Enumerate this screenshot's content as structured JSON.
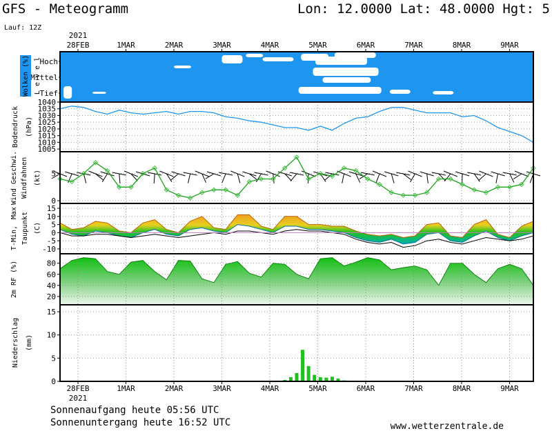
{
  "header": {
    "title": "GFS - Meteogramm",
    "location": "Lon: 12.0000 Lat: 48.0000 Hgt: 5",
    "run": "Lauf: 12Z"
  },
  "x_axis": {
    "year": "2021",
    "dates": [
      "28FEB",
      "1MAR",
      "2MAR",
      "3MAR",
      "4MAR",
      "5MAR",
      "6MAR",
      "7MAR",
      "8MAR",
      "9MAR"
    ]
  },
  "footer": {
    "sunrise": "Sonnenaufgang heute 05:56 UTC",
    "sunset": "Sonnenuntergang heute 16:52 UTC",
    "site": "www.wetterzentrale.de"
  },
  "colors": {
    "cloud_bg": "#1e96f0",
    "cloud": "#ffffff",
    "pressure_line": "#1e96f0",
    "wind_line": "#1aa01a",
    "wind_marker": "#40c040",
    "tmax_fill": "#f0a020",
    "tmin_fill": "#00c0c0",
    "temp_fill": "#20c020",
    "dew_line": "#000000",
    "rh_fill": "#20c020",
    "precip_bar": "#20c020"
  },
  "chart_data": [
    {
      "type": "area",
      "panel": "clouds",
      "ylabel": [
        "Wolken (%)",
        "L e v e l"
      ],
      "levels": [
        "Hoch",
        "Mittel",
        "Tief"
      ]
    },
    {
      "type": "line",
      "panel": "pressure",
      "ylabel": [
        "Bodendruck",
        "(hPa)"
      ],
      "yticks": [
        1005,
        1010,
        1015,
        1020,
        1025,
        1030,
        1035,
        1040
      ],
      "ylim": [
        1003,
        1040
      ],
      "x_days": [
        0,
        0.25,
        0.5,
        0.75,
        1,
        1.25,
        1.5,
        1.75,
        2,
        2.25,
        2.5,
        2.75,
        3,
        3.25,
        3.5,
        3.75,
        4,
        4.25,
        4.5,
        4.75,
        5,
        5.25,
        5.5,
        5.75,
        6,
        6.25,
        6.5,
        6.75,
        7,
        7.25,
        7.5,
        7.75,
        8,
        8.25,
        8.5,
        8.75,
        9,
        9.25,
        9.5,
        9.75,
        10
      ],
      "values": [
        1035,
        1037,
        1036,
        1033,
        1031,
        1034,
        1032,
        1031,
        1032,
        1033,
        1031,
        1033,
        1033,
        1032,
        1029,
        1028,
        1026,
        1025,
        1023,
        1021,
        1021,
        1019,
        1022,
        1019,
        1024,
        1028,
        1029,
        1033,
        1036,
        1036,
        1034,
        1032,
        1032,
        1032,
        1029,
        1030,
        1026,
        1021,
        1018,
        1015,
        1010
      ]
    },
    {
      "type": "line",
      "panel": "wind",
      "ylabel": [
        "Wind Geschwi.",
        "Windfahnen",
        "(kt)"
      ],
      "yticks": [
        0,
        5
      ],
      "ylim": [
        -0.5,
        9
      ],
      "x_days": [
        0,
        0.25,
        0.5,
        0.75,
        1,
        1.25,
        1.5,
        1.75,
        2,
        2.25,
        2.5,
        2.75,
        3,
        3.25,
        3.5,
        3.75,
        4,
        4.25,
        4.5,
        4.75,
        5,
        5.25,
        5.5,
        5.75,
        6,
        6.25,
        6.5,
        6.75,
        7,
        7.25,
        7.5,
        7.75,
        8,
        8.25,
        8.5,
        8.75,
        9,
        9.25,
        9.5,
        9.75,
        10
      ],
      "values": [
        4,
        3.5,
        5,
        7,
        5.5,
        2.5,
        2.5,
        5,
        6,
        2,
        1,
        0.5,
        1.5,
        2,
        2,
        1,
        3.5,
        4,
        4,
        6,
        8,
        4,
        5,
        4.5,
        6,
        5.5,
        4,
        3,
        1.5,
        1,
        1,
        1.5,
        4,
        4,
        3,
        2,
        1.5,
        2.5,
        2.5,
        3,
        6
      ]
    },
    {
      "type": "area",
      "panel": "temperature",
      "ylabel": [
        "T-Min,",
        "Max",
        "Taupunkt",
        "(C)"
      ],
      "yticks": [
        -10,
        -5,
        0,
        5,
        10,
        15
      ],
      "ylim": [
        -13,
        18
      ],
      "x_days": [
        0,
        0.25,
        0.5,
        0.75,
        1,
        1.25,
        1.5,
        1.75,
        2,
        2.25,
        2.5,
        2.75,
        3,
        3.25,
        3.5,
        3.75,
        4,
        4.25,
        4.5,
        4.75,
        5,
        5.25,
        5.5,
        5.75,
        6,
        6.25,
        6.5,
        6.75,
        7,
        7.25,
        7.5,
        7.75,
        8,
        8.25,
        8.5,
        8.75,
        9,
        9.25,
        9.5,
        9.75,
        10
      ],
      "tmax": [
        6,
        2,
        3,
        7,
        6,
        1,
        0,
        6,
        8,
        2,
        0,
        7,
        10,
        3,
        2,
        11,
        11,
        4,
        2,
        10,
        10,
        5,
        5,
        4,
        4,
        1,
        -1,
        -2,
        -1,
        -3,
        -2,
        5,
        6,
        -2,
        -3,
        5,
        8,
        -1,
        -3,
        4,
        7
      ],
      "tmin": [
        2,
        -1,
        -2,
        1,
        0,
        -2,
        -3,
        0,
        2,
        -1,
        -2,
        2,
        3,
        1,
        0,
        5,
        4,
        2,
        0,
        4,
        4,
        2,
        2,
        1,
        0,
        -3,
        -5,
        -6,
        -4,
        -7,
        -6,
        -1,
        0,
        -5,
        -6,
        -2,
        1,
        -3,
        -5,
        -2,
        0
      ],
      "dewpoint": [
        0,
        -2,
        -2,
        -1,
        -1,
        -2,
        -3,
        -2,
        -1,
        -2,
        -3,
        -2,
        -1,
        0,
        -1,
        1,
        1,
        0,
        -1,
        1,
        2,
        1,
        1,
        0,
        -1,
        -4,
        -6,
        -7,
        -6,
        -9,
        -8,
        -5,
        -4,
        -6,
        -7,
        -5,
        -3,
        -4,
        -5,
        -4,
        -2
      ]
    },
    {
      "type": "area",
      "panel": "humidity",
      "ylabel": [
        "2m RF (%)"
      ],
      "yticks": [
        20,
        40,
        60,
        80
      ],
      "ylim": [
        5,
        97
      ],
      "x_days": [
        0,
        0.25,
        0.5,
        0.75,
        1,
        1.25,
        1.5,
        1.75,
        2,
        2.25,
        2.5,
        2.75,
        3,
        3.25,
        3.5,
        3.75,
        4,
        4.25,
        4.5,
        4.75,
        5,
        5.25,
        5.5,
        5.75,
        6,
        6.25,
        6.5,
        6.75,
        7,
        7.25,
        7.5,
        7.75,
        8,
        8.25,
        8.5,
        8.75,
        9,
        9.25,
        9.5,
        9.75,
        10
      ],
      "values": [
        70,
        85,
        90,
        88,
        65,
        60,
        82,
        85,
        65,
        50,
        85,
        84,
        52,
        45,
        78,
        83,
        62,
        55,
        80,
        78,
        60,
        52,
        88,
        90,
        75,
        82,
        90,
        86,
        68,
        72,
        75,
        68,
        40,
        80,
        80,
        60,
        45,
        70,
        78,
        70,
        40
      ]
    },
    {
      "type": "bar",
      "panel": "precipitation",
      "ylabel": [
        "Niederschlag",
        "(mm)"
      ],
      "yticks": [
        0,
        5,
        10,
        15
      ],
      "ylim": [
        0,
        16.5
      ],
      "x_days": [
        4.75,
        4.875,
        5,
        5.125,
        5.25,
        5.375,
        5.5,
        5.625,
        5.75,
        5.875,
        6.0
      ],
      "values": [
        0.3,
        0.9,
        1.8,
        6.8,
        3.3,
        1.4,
        0.9,
        0.8,
        1.0,
        0.6,
        0.2
      ]
    }
  ]
}
